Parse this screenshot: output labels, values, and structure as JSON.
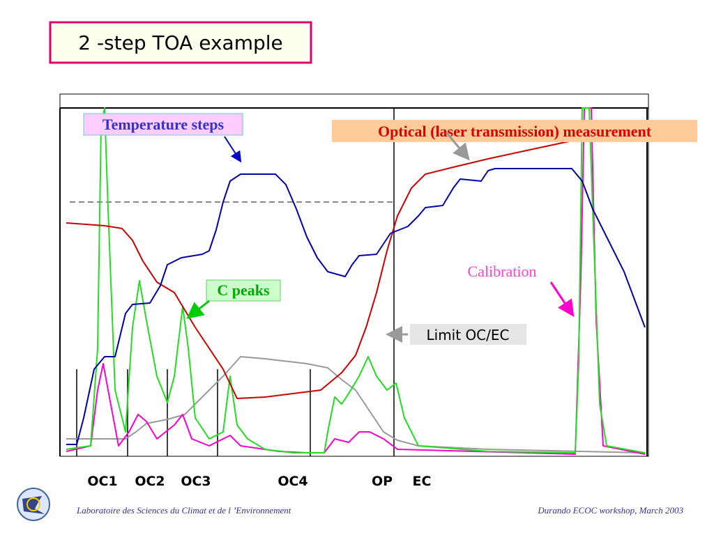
{
  "title": "2 -step TOA  example",
  "annotations": {
    "temperature": "Temperature steps",
    "optical": "Optical (laser transmission) measurement",
    "c_peaks": "C peaks",
    "calibration": "Calibration",
    "limit": "Limit OC/EC"
  },
  "phases": [
    "OC1",
    "OC2",
    "OC3",
    "OC4",
    "OP",
    "EC"
  ],
  "footer": {
    "left": "Laboratoire des Sciences du Climat et de l ’Environnement",
    "right": "Durando ECOC workshop, March 2003"
  }
}
